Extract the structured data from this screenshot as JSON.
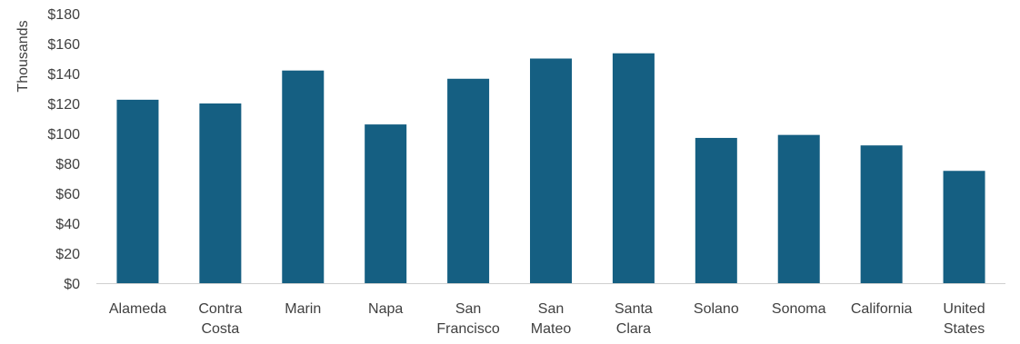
{
  "chart_data": {
    "type": "bar",
    "title": "",
    "xlabel": "",
    "ylabel": "Thousands",
    "categories": [
      [
        "Alameda"
      ],
      [
        "Contra",
        "Costa"
      ],
      [
        "Marin"
      ],
      [
        "Napa"
      ],
      [
        "San",
        "Francisco"
      ],
      [
        "San",
        "Mateo"
      ],
      [
        "Santa",
        "Clara"
      ],
      [
        "Solano"
      ],
      [
        "Sonoma"
      ],
      [
        "California"
      ],
      [
        "United",
        "States"
      ]
    ],
    "values": [
      122.5,
      120,
      142,
      106,
      136.5,
      150,
      153.5,
      97,
      99,
      92,
      75
    ],
    "ylim": [
      0,
      180
    ],
    "yticks": [
      "$0",
      "$20",
      "$40",
      "$60",
      "$80",
      "$100",
      "$120",
      "$140",
      "$160",
      "$180"
    ],
    "grid": false,
    "legend": "none",
    "colors": {
      "bar": "#155f82"
    }
  }
}
